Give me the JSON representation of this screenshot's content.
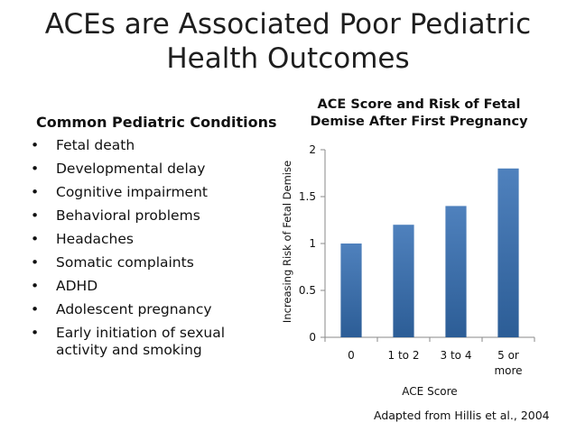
{
  "slide": {
    "title_line1": "ACEs are Associated Poor Pediatric",
    "title_line2": "Health Outcomes",
    "left_heading": "Common Pediatric Conditions",
    "conditions": [
      "Fetal death",
      "Developmental delay",
      "Cognitive impairment",
      "Behavioral problems",
      "Headaches",
      "Somatic complaints",
      "ADHD",
      "Adolescent pregnancy",
      "Early initiation of sexual activity and smoking"
    ],
    "bullet_glyph": "•",
    "source_note": "Adapted from Hillis et al., 2004"
  },
  "chart_data": {
    "type": "bar",
    "title_line1": "ACE Score and Risk of Fetal",
    "title_line2": "Demise After First Pregnancy",
    "xlabel": "ACE Score",
    "ylabel": "Increasing Risk of Fetal Demise",
    "categories": [
      "0",
      "1 to 2",
      "3 to 4",
      "5 or more"
    ],
    "category_lines": [
      [
        "0"
      ],
      [
        "1 to 2"
      ],
      [
        "3 to 4"
      ],
      [
        "5 or",
        "more"
      ]
    ],
    "values": [
      1.0,
      1.2,
      1.4,
      1.8
    ],
    "ylim": [
      0,
      2
    ],
    "yticks": [
      0,
      0.5,
      1,
      1.5,
      2
    ],
    "ytick_labels": [
      "0",
      "0.5",
      "1",
      "1.5",
      "2"
    ],
    "grid": false,
    "legend": "none",
    "bar_color_top": "#4f81bd",
    "bar_color_bottom": "#2c5d96"
  }
}
